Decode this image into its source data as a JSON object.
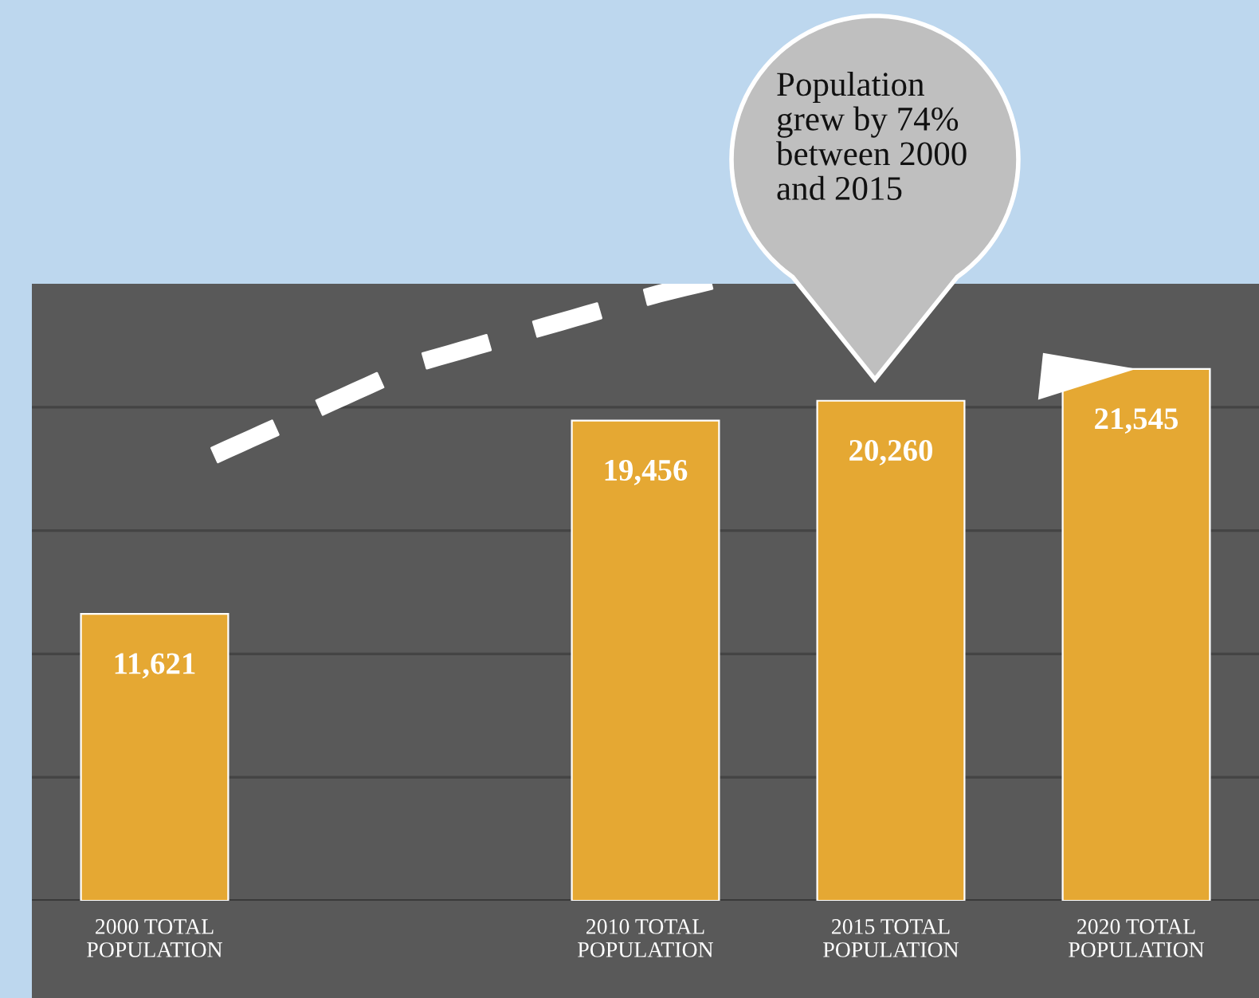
{
  "chart_data": {
    "type": "bar",
    "categories": [
      "2000 TOTAL\nPOPULATION",
      null,
      "2010 TOTAL\nPOPULATION",
      "2015 TOTAL\nPOPULATION",
      "2020 TOTAL\nPOPULATION"
    ],
    "values": [
      11621,
      null,
      19456,
      20260,
      21545
    ],
    "value_labels": [
      "11,621",
      null,
      "19,456",
      "20,260",
      "21,545"
    ],
    "color": "#e5a833",
    "ylim": [
      0,
      25000
    ],
    "yticks": [
      {
        "value": 0,
        "label": null
      },
      {
        "value": 5000,
        "label": null
      },
      {
        "value": 10000,
        "label": null
      },
      {
        "value": 15000,
        "label": null
      },
      {
        "value": 20000,
        "label": null
      }
    ],
    "tick_labels": "x",
    "grid": "y",
    "annotations": [
      "Population\ngrew by 74%\nbetween 2000\nand 2015"
    ]
  }
}
